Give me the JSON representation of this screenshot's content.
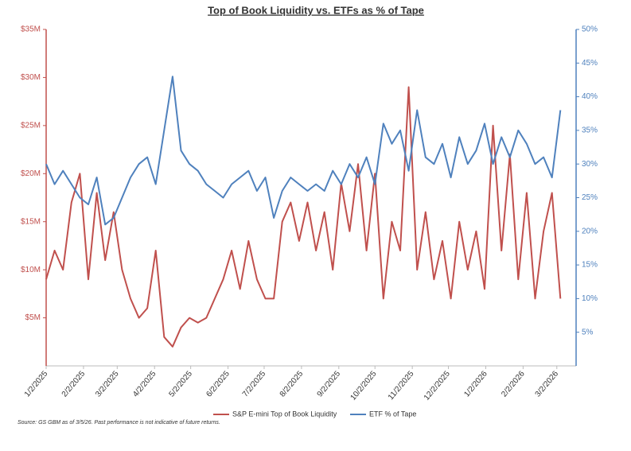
{
  "chart_data": {
    "type": "line",
    "title": "Top of Book Liquidity vs. ETFs as % of Tape",
    "source": "Source: GS GBM as of 3/5/26. Past performance is not indicative of future returns.",
    "x": [
      "2025-01-02",
      "2025-01-09",
      "2025-01-16",
      "2025-01-23",
      "2025-01-30",
      "2025-02-06",
      "2025-02-13",
      "2025-02-20",
      "2025-02-27",
      "2025-03-06",
      "2025-03-13",
      "2025-03-20",
      "2025-03-27",
      "2025-04-03",
      "2025-04-10",
      "2025-04-17",
      "2025-04-24",
      "2025-05-01",
      "2025-05-08",
      "2025-05-15",
      "2025-05-22",
      "2025-05-29",
      "2025-06-05",
      "2025-06-12",
      "2025-06-19",
      "2025-06-26",
      "2025-07-03",
      "2025-07-10",
      "2025-07-17",
      "2025-07-24",
      "2025-07-31",
      "2025-08-07",
      "2025-08-14",
      "2025-08-21",
      "2025-08-28",
      "2025-09-04",
      "2025-09-11",
      "2025-09-18",
      "2025-09-25",
      "2025-10-02",
      "2025-10-09",
      "2025-10-16",
      "2025-10-23",
      "2025-10-30",
      "2025-11-06",
      "2025-11-13",
      "2025-11-20",
      "2025-11-27",
      "2025-12-04",
      "2025-12-11",
      "2025-12-18",
      "2025-12-25",
      "2026-01-01",
      "2026-01-08",
      "2026-01-15",
      "2026-01-22",
      "2026-01-29",
      "2026-02-05",
      "2026-02-12",
      "2026-02-19",
      "2026-02-26",
      "2026-03-05"
    ],
    "series": [
      {
        "name": "S&P E-mini Top of Book Liquidity",
        "color": "#c0504d",
        "axis": "y",
        "values": [
          9,
          12,
          10,
          17,
          20,
          9,
          18,
          11,
          16,
          10,
          7,
          5,
          6,
          12,
          3,
          2,
          4,
          5,
          4.5,
          5,
          7,
          9,
          12,
          8,
          13,
          9,
          7,
          7,
          15,
          17,
          13,
          17,
          12,
          16,
          10,
          19,
          14,
          21,
          12,
          20,
          7,
          15,
          12,
          29,
          10,
          16,
          9,
          13,
          7,
          15,
          10,
          14,
          8,
          25,
          12,
          22,
          9,
          18,
          7,
          14,
          18,
          7
        ]
      },
      {
        "name": "ETF % of Tape",
        "color": "#4f81bd",
        "axis": "y2",
        "values": [
          30,
          27,
          29,
          27,
          25,
          24,
          28,
          21,
          22,
          25,
          28,
          30,
          31,
          27,
          35,
          43,
          32,
          30,
          29,
          27,
          26,
          25,
          27,
          28,
          29,
          26,
          28,
          22,
          26,
          28,
          27,
          26,
          27,
          26,
          29,
          27,
          30,
          28,
          31,
          27,
          36,
          33,
          35,
          29,
          38,
          31,
          30,
          33,
          28,
          34,
          30,
          32,
          36,
          30,
          34,
          31,
          35,
          33,
          30,
          31,
          28,
          38
        ]
      }
    ],
    "xlim": [
      "2025-01-02",
      "2026-03-18"
    ],
    "xticks": [
      {
        "value": "2025-01-02",
        "label": "1/2/2025"
      },
      {
        "value": "2025-02-02",
        "label": "2/2/2025"
      },
      {
        "value": "2025-03-02",
        "label": "3/2/2025"
      },
      {
        "value": "2025-04-02",
        "label": "4/2/2025"
      },
      {
        "value": "2025-05-02",
        "label": "5/2/2025"
      },
      {
        "value": "2025-06-02",
        "label": "6/2/2025"
      },
      {
        "value": "2025-07-02",
        "label": "7/2/2025"
      },
      {
        "value": "2025-08-02",
        "label": "8/2/2025"
      },
      {
        "value": "2025-09-02",
        "label": "9/2/2025"
      },
      {
        "value": "2025-10-02",
        "label": "10/2/2025"
      },
      {
        "value": "2025-11-02",
        "label": "11/2/2025"
      },
      {
        "value": "2025-12-02",
        "label": "12/2/2025"
      },
      {
        "value": "2026-01-02",
        "label": "1/2/2026"
      },
      {
        "value": "2026-02-02",
        "label": "2/2/2026"
      },
      {
        "value": "2026-03-02",
        "label": "3/2/2026"
      }
    ],
    "ylim": [
      0,
      35
    ],
    "yticks": [
      {
        "value": 5,
        "label": "$5M"
      },
      {
        "value": 10,
        "label": "$10M"
      },
      {
        "value": 15,
        "label": "$15M"
      },
      {
        "value": 20,
        "label": "$20M"
      },
      {
        "value": 25,
        "label": "$25M"
      },
      {
        "value": 30,
        "label": "$30M"
      },
      {
        "value": 35,
        "label": "$35M"
      }
    ],
    "y2lim": [
      0,
      50
    ],
    "y2ticks": [
      {
        "value": 5,
        "label": "5%"
      },
      {
        "value": 10,
        "label": "10%"
      },
      {
        "value": 15,
        "label": "15%"
      },
      {
        "value": 20,
        "label": "20%"
      },
      {
        "value": 25,
        "label": "25%"
      },
      {
        "value": 30,
        "label": "30%"
      },
      {
        "value": 35,
        "label": "35%"
      },
      {
        "value": 40,
        "label": "40%"
      },
      {
        "value": 45,
        "label": "45%"
      },
      {
        "value": 50,
        "label": "50%"
      }
    ],
    "legend": "bottom"
  }
}
